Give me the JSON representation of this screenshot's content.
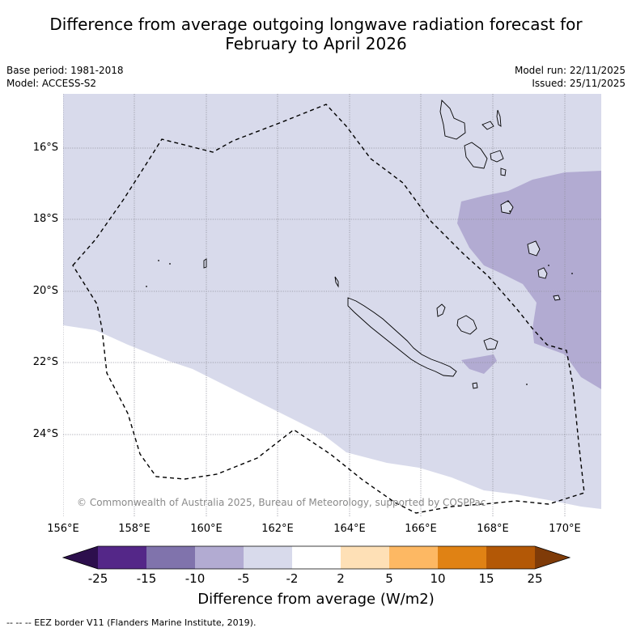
{
  "title_line1": "Difference from average outgoing longwave radiation forecast for",
  "title_line2": "February to April 2026",
  "base_period": "Base period: 1981-2018",
  "model": "Model: ACCESS-S2",
  "model_run": "Model run: 22/11/2025",
  "issued": "Issued: 25/11/2025",
  "lat_labels": [
    "16°S",
    "18°S",
    "20°S",
    "22°S",
    "24°S"
  ],
  "lon_labels": [
    "156°E",
    "158°E",
    "160°E",
    "162°E",
    "164°E",
    "166°E",
    "168°E",
    "170°E"
  ],
  "copyright": "© Commonwealth of Australia 2025, Bureau of Meteorology, supported by COSPPac",
  "colorbar": {
    "ticks": [
      "-25",
      "-15",
      "-10",
      "-5",
      "-2",
      "2",
      "5",
      "10",
      "15",
      "25"
    ],
    "colors": {
      "below_min": "#2d0f4d",
      "bin_m25_m15": "#542788",
      "bin_m15_m10": "#8073ac",
      "bin_m10_m5": "#b2abd2",
      "bin_m5_m2": "#d8daeb",
      "bin_m2_2": "#ffffff",
      "bin_2_5": "#fee0b6",
      "bin_5_10": "#fdb863",
      "bin_10_15": "#e08214",
      "bin_15_25": "#b35806",
      "above_max": "#7f3b08"
    },
    "title": "Difference from average (W/m2)"
  },
  "footnote": "--  --  -- EEZ border V11 (Flanders Marine Institute, 2019)."
}
